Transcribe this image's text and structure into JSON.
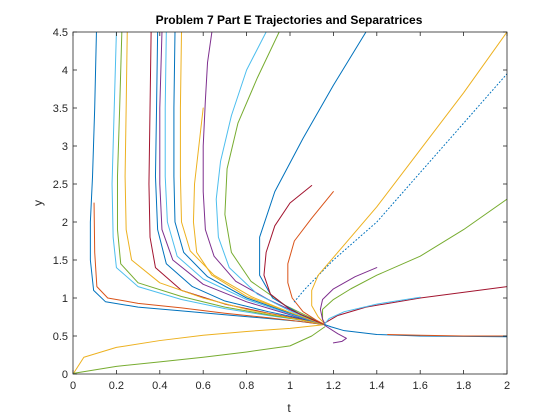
{
  "chart_data": {
    "type": "line",
    "title": "Problem 7 Part E Trajectories and Separatrices",
    "xlabel": "t",
    "ylabel": "y",
    "xlim": [
      0,
      2
    ],
    "ylim": [
      0,
      4.5
    ],
    "xticks": [
      "0",
      "0.2",
      "0.4",
      "0.6",
      "0.8",
      "1",
      "1.2",
      "1.4",
      "1.6",
      "1.8",
      "2"
    ],
    "yticks": [
      "0",
      "0.5",
      "1",
      "1.5",
      "2",
      "2.5",
      "3",
      "3.5",
      "4",
      "4.5"
    ],
    "grid": false,
    "legend": "none",
    "series": [
      {
        "color": "#0072BD",
        "style": "solid",
        "points": [
          [
            0.108,
            4.5
          ],
          [
            0.1,
            3.5
          ],
          [
            0.09,
            2.6
          ],
          [
            0.08,
            2.0
          ],
          [
            0.08,
            1.5
          ],
          [
            0.095,
            1.1
          ],
          [
            0.15,
            0.95
          ],
          [
            0.3,
            0.88
          ],
          [
            0.5,
            0.83
          ],
          [
            0.7,
            0.78
          ],
          [
            0.9,
            0.73
          ],
          [
            1.05,
            0.69
          ],
          [
            1.16,
            0.65
          ]
        ]
      },
      {
        "color": "#D95319",
        "style": "solid",
        "points": [
          [
            0.097,
            2.25
          ],
          [
            0.1,
            1.6
          ],
          [
            0.11,
            1.15
          ],
          [
            0.16,
            1.0
          ],
          [
            0.3,
            0.93
          ],
          [
            0.5,
            0.87
          ],
          [
            0.7,
            0.8
          ],
          [
            0.9,
            0.74
          ],
          [
            1.05,
            0.69
          ],
          [
            1.16,
            0.65
          ]
        ]
      },
      {
        "color": "#EDB120",
        "style": "solid",
        "points": [
          [
            0.005,
            0.02
          ],
          [
            0.05,
            0.22
          ],
          [
            0.2,
            0.35
          ],
          [
            0.4,
            0.44
          ],
          [
            0.6,
            0.51
          ],
          [
            0.8,
            0.56
          ],
          [
            1.0,
            0.6
          ],
          [
            1.16,
            0.65
          ]
        ]
      },
      {
        "color": "#77AC30",
        "style": "solid",
        "points": [
          [
            0.005,
            0.01
          ],
          [
            0.2,
            0.1
          ],
          [
            0.4,
            0.16
          ],
          [
            0.6,
            0.22
          ],
          [
            0.8,
            0.29
          ],
          [
            1.0,
            0.37
          ],
          [
            1.1,
            0.5
          ],
          [
            1.16,
            0.62
          ]
        ]
      },
      {
        "color": "#7E2F8E",
        "style": "solid",
        "points": [
          [
            1.16,
            0.64
          ],
          [
            1.22,
            0.53
          ],
          [
            1.26,
            0.47
          ],
          [
            1.24,
            0.43
          ],
          [
            1.2,
            0.41
          ]
        ]
      },
      {
        "color": "#4DBEEE",
        "style": "solid",
        "points": [
          [
            0.2,
            4.5
          ],
          [
            0.19,
            3.5
          ],
          [
            0.18,
            2.5
          ],
          [
            0.185,
            1.8
          ],
          [
            0.2,
            1.4
          ],
          [
            0.3,
            1.15
          ],
          [
            0.5,
            0.98
          ],
          [
            0.7,
            0.86
          ],
          [
            0.9,
            0.77
          ],
          [
            1.05,
            0.71
          ],
          [
            1.16,
            0.65
          ]
        ]
      },
      {
        "color": "#A2142F",
        "style": "solid",
        "points": [
          [
            0.36,
            4.5
          ],
          [
            0.355,
            3.5
          ],
          [
            0.35,
            2.5
          ],
          [
            0.355,
            1.8
          ],
          [
            0.38,
            1.4
          ],
          [
            0.5,
            1.1
          ],
          [
            0.7,
            0.92
          ],
          [
            0.9,
            0.8
          ],
          [
            1.05,
            0.72
          ],
          [
            1.16,
            0.65
          ]
        ]
      },
      {
        "color": "#77AC30",
        "style": "solid",
        "points": [
          [
            0.225,
            4.5
          ],
          [
            0.215,
            3.5
          ],
          [
            0.205,
            2.6
          ],
          [
            0.205,
            1.9
          ],
          [
            0.22,
            1.45
          ],
          [
            0.3,
            1.2
          ],
          [
            0.5,
            1.02
          ],
          [
            0.7,
            0.88
          ],
          [
            0.9,
            0.78
          ],
          [
            1.05,
            0.71
          ],
          [
            1.16,
            0.65
          ]
        ]
      },
      {
        "color": "#0072BD",
        "style": "solid",
        "points": [
          [
            0.39,
            4.5
          ],
          [
            0.385,
            3.5
          ],
          [
            0.38,
            2.6
          ],
          [
            0.39,
            1.9
          ],
          [
            0.43,
            1.45
          ],
          [
            0.55,
            1.15
          ],
          [
            0.7,
            0.96
          ],
          [
            0.9,
            0.82
          ],
          [
            1.05,
            0.73
          ],
          [
            1.16,
            0.65
          ]
        ]
      },
      {
        "color": "#EDB120",
        "style": "solid",
        "points": [
          [
            0.25,
            4.5
          ],
          [
            0.245,
            3.5
          ],
          [
            0.24,
            2.6
          ],
          [
            0.245,
            1.9
          ],
          [
            0.27,
            1.5
          ],
          [
            0.4,
            1.2
          ],
          [
            0.6,
            1.0
          ],
          [
            0.8,
            0.85
          ],
          [
            1.0,
            0.74
          ],
          [
            1.16,
            0.65
          ]
        ]
      },
      {
        "color": "#7E2F8E",
        "style": "solid",
        "points": [
          [
            0.41,
            4.5
          ],
          [
            0.4,
            3.5
          ],
          [
            0.4,
            2.5
          ],
          [
            0.41,
            1.9
          ],
          [
            0.46,
            1.5
          ],
          [
            0.6,
            1.18
          ],
          [
            0.8,
            0.95
          ],
          [
            1.0,
            0.78
          ],
          [
            1.16,
            0.65
          ]
        ]
      },
      {
        "color": "#4DBEEE",
        "style": "solid",
        "points": [
          [
            0.43,
            4.5
          ],
          [
            0.425,
            3.5
          ],
          [
            0.425,
            2.6
          ],
          [
            0.435,
            2.0
          ],
          [
            0.48,
            1.55
          ],
          [
            0.6,
            1.25
          ],
          [
            0.8,
            0.98
          ],
          [
            1.0,
            0.79
          ],
          [
            1.16,
            0.65
          ]
        ]
      },
      {
        "color": "#0072BD",
        "style": "solid",
        "points": [
          [
            0.47,
            4.5
          ],
          [
            0.465,
            3.5
          ],
          [
            0.465,
            2.6
          ],
          [
            0.47,
            2.0
          ],
          [
            0.51,
            1.6
          ],
          [
            0.62,
            1.28
          ],
          [
            0.8,
            1.0
          ],
          [
            1.0,
            0.8
          ],
          [
            1.16,
            0.65
          ]
        ]
      },
      {
        "color": "#EDB120",
        "style": "solid",
        "points": [
          [
            0.5,
            4.5
          ],
          [
            0.495,
            3.5
          ],
          [
            0.495,
            2.6
          ],
          [
            0.5,
            2.0
          ],
          [
            0.54,
            1.62
          ],
          [
            0.65,
            1.3
          ],
          [
            0.82,
            1.02
          ],
          [
            1.0,
            0.81
          ],
          [
            1.16,
            0.65
          ]
        ]
      },
      {
        "color": "#7E2F8E",
        "style": "solid",
        "points": [
          [
            0.64,
            4.5
          ],
          [
            0.62,
            4.1
          ],
          [
            0.61,
            3.6
          ],
          [
            0.6,
            3.0
          ],
          [
            0.6,
            2.4
          ],
          [
            0.61,
            1.9
          ],
          [
            0.65,
            1.55
          ],
          [
            0.75,
            1.22
          ],
          [
            0.9,
            0.98
          ],
          [
            1.05,
            0.78
          ],
          [
            1.16,
            0.65
          ]
        ]
      },
      {
        "color": "#4DBEEE",
        "style": "solid",
        "points": [
          [
            0.89,
            4.5
          ],
          [
            0.8,
            4.0
          ],
          [
            0.73,
            3.4
          ],
          [
            0.68,
            2.8
          ],
          [
            0.66,
            2.3
          ],
          [
            0.67,
            1.8
          ],
          [
            0.72,
            1.4
          ],
          [
            0.85,
            1.05
          ],
          [
            1.0,
            0.83
          ],
          [
            1.16,
            0.65
          ]
        ]
      },
      {
        "color": "#EDB120",
        "style": "solid",
        "points": [
          [
            0.6,
            3.5
          ],
          [
            0.58,
            3.0
          ],
          [
            0.56,
            2.5
          ],
          [
            0.555,
            2.0
          ],
          [
            0.57,
            1.6
          ],
          [
            0.64,
            1.3
          ],
          [
            0.8,
            1.02
          ],
          [
            1.0,
            0.81
          ],
          [
            1.16,
            0.65
          ]
        ]
      },
      {
        "color": "#77AC30",
        "style": "solid",
        "points": [
          [
            0.95,
            4.5
          ],
          [
            0.85,
            3.9
          ],
          [
            0.76,
            3.3
          ],
          [
            0.71,
            2.7
          ],
          [
            0.7,
            2.1
          ],
          [
            0.73,
            1.6
          ],
          [
            0.82,
            1.22
          ],
          [
            0.98,
            0.9
          ],
          [
            1.16,
            0.65
          ]
        ]
      },
      {
        "color": "#0072BD",
        "style": "solid",
        "points": [
          [
            1.35,
            4.5
          ],
          [
            1.2,
            3.8
          ],
          [
            1.06,
            3.1
          ],
          [
            0.93,
            2.4
          ],
          [
            0.86,
            1.8
          ],
          [
            0.86,
            1.3
          ],
          [
            0.92,
            1.0
          ],
          [
            1.05,
            0.78
          ],
          [
            1.16,
            0.65
          ]
        ]
      },
      {
        "color": "#A2142F",
        "style": "solid",
        "points": [
          [
            1.1,
            2.48
          ],
          [
            1.0,
            2.25
          ],
          [
            0.93,
            1.95
          ],
          [
            0.89,
            1.6
          ],
          [
            0.88,
            1.3
          ],
          [
            0.91,
            1.05
          ],
          [
            1.0,
            0.85
          ],
          [
            1.1,
            0.72
          ],
          [
            1.16,
            0.65
          ]
        ]
      },
      {
        "color": "#D95319",
        "style": "solid",
        "points": [
          [
            1.2,
            2.4
          ],
          [
            1.1,
            2.05
          ],
          [
            1.02,
            1.75
          ],
          [
            0.99,
            1.45
          ],
          [
            0.99,
            1.2
          ],
          [
            1.01,
            1.0
          ],
          [
            1.06,
            0.82
          ],
          [
            1.12,
            0.71
          ],
          [
            1.16,
            0.65
          ]
        ]
      },
      {
        "color": "#0072BD",
        "style": "dotted",
        "points": [
          [
            2.0,
            3.95
          ],
          [
            1.8,
            3.3
          ],
          [
            1.6,
            2.65
          ],
          [
            1.4,
            2.0
          ],
          [
            1.2,
            1.5
          ],
          [
            1.07,
            1.12
          ],
          [
            1.02,
            0.95
          ]
        ]
      },
      {
        "color": "#EDB120",
        "style": "solid",
        "points": [
          [
            2.0,
            4.5
          ],
          [
            1.8,
            3.7
          ],
          [
            1.6,
            2.95
          ],
          [
            1.4,
            2.2
          ],
          [
            1.25,
            1.7
          ],
          [
            1.13,
            1.3
          ],
          [
            1.1,
            1.1
          ],
          [
            1.1,
            0.9
          ],
          [
            1.13,
            0.75
          ],
          [
            1.16,
            0.66
          ]
        ]
      },
      {
        "color": "#77AC30",
        "style": "solid",
        "points": [
          [
            2.0,
            2.3
          ],
          [
            1.8,
            1.9
          ],
          [
            1.6,
            1.55
          ],
          [
            1.4,
            1.3
          ],
          [
            1.28,
            1.12
          ],
          [
            1.2,
            0.98
          ],
          [
            1.15,
            0.85
          ],
          [
            1.15,
            0.72
          ],
          [
            1.16,
            0.66
          ]
        ]
      },
      {
        "color": "#7E2F8E",
        "style": "solid",
        "points": [
          [
            1.4,
            1.4
          ],
          [
            1.3,
            1.28
          ],
          [
            1.2,
            1.12
          ],
          [
            1.15,
            0.98
          ],
          [
            1.14,
            0.85
          ],
          [
            1.15,
            0.72
          ],
          [
            1.16,
            0.66
          ]
        ]
      },
      {
        "color": "#A2142F",
        "style": "solid",
        "points": [
          [
            2.0,
            1.15
          ],
          [
            1.6,
            1.0
          ],
          [
            1.35,
            0.88
          ],
          [
            1.22,
            0.77
          ],
          [
            1.16,
            0.67
          ]
        ]
      },
      {
        "color": "#4DBEEE",
        "style": "solid",
        "points": [
          [
            1.6,
            1.01
          ],
          [
            1.4,
            0.92
          ],
          [
            1.25,
            0.82
          ],
          [
            1.18,
            0.73
          ],
          [
            1.16,
            0.66
          ]
        ]
      },
      {
        "color": "#0072BD",
        "style": "solid",
        "points": [
          [
            2.0,
            0.49
          ],
          [
            1.6,
            0.5
          ],
          [
            1.4,
            0.52
          ],
          [
            1.25,
            0.57
          ],
          [
            1.19,
            0.62
          ],
          [
            1.16,
            0.65
          ]
        ]
      },
      {
        "color": "#D95319",
        "style": "solid",
        "points": [
          [
            2.0,
            0.5
          ],
          [
            1.8,
            0.5
          ],
          [
            1.6,
            0.51
          ],
          [
            1.45,
            0.52
          ]
        ]
      }
    ]
  }
}
